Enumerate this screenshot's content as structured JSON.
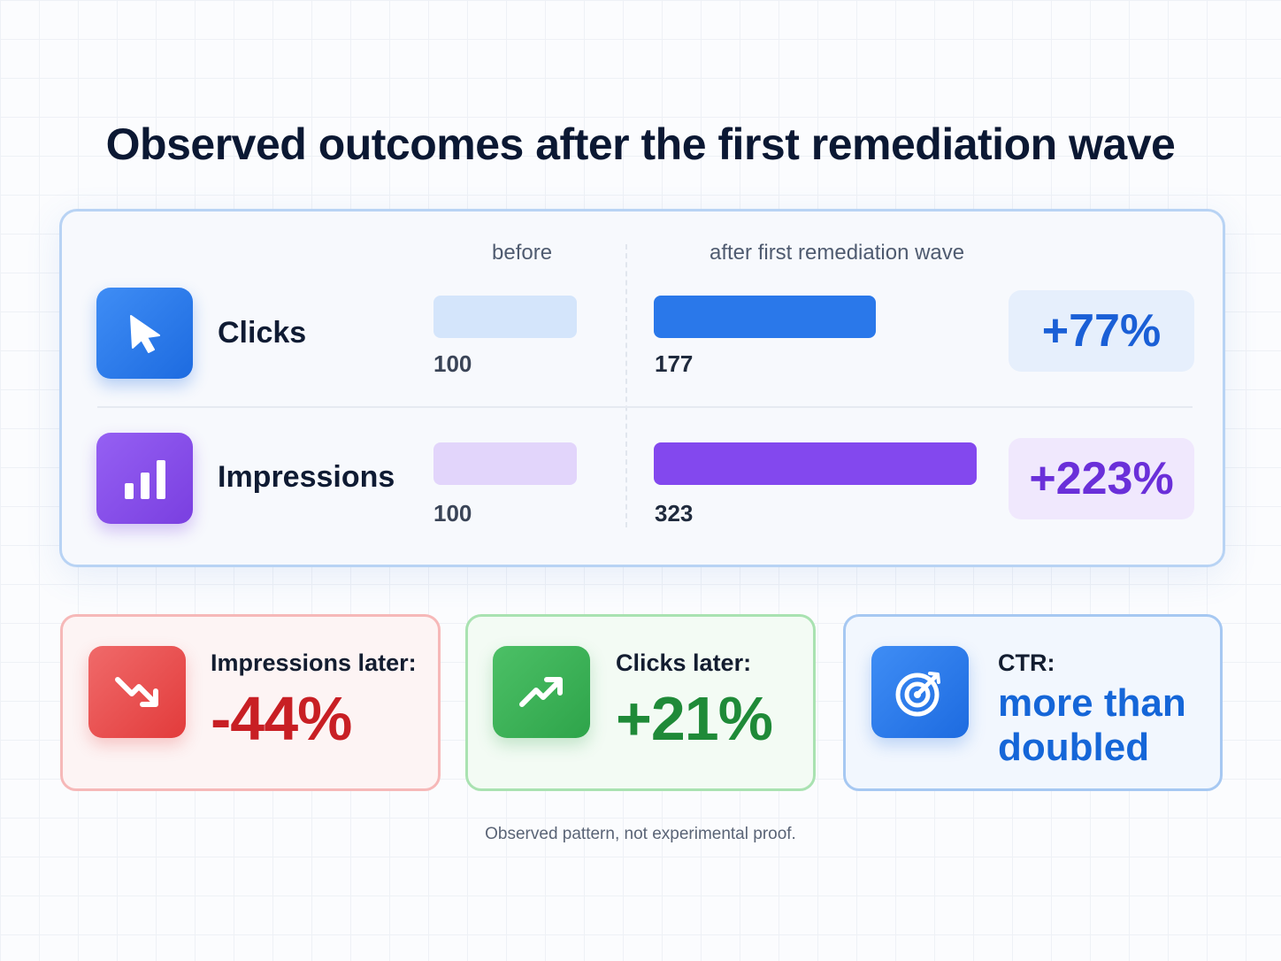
{
  "title": "Observed outcomes after the first remediation wave",
  "columns": {
    "before": "before",
    "after": "after first remediation wave"
  },
  "metrics": [
    {
      "label": "Clicks",
      "icon": "cursor-arrow-icon",
      "before": 100,
      "after": 177,
      "before_text": "100",
      "after_text": "177",
      "change": "+77%",
      "color": "#2a78ea",
      "light_color": "#d4e5fb"
    },
    {
      "label": "Impressions",
      "icon": "bar-chart-icon",
      "before": 100,
      "after": 323,
      "before_text": "100",
      "after_text": "323",
      "change": "+223%",
      "color": "#8348ee",
      "light_color": "#e2d5fb"
    }
  ],
  "cards": [
    {
      "label": "Impressions later:",
      "value": "-44%",
      "icon": "trend-down-icon",
      "color": "#c81f24"
    },
    {
      "label": "Clicks later:",
      "value": "+21%",
      "icon": "trend-up-icon",
      "color": "#1f8a38"
    },
    {
      "label": "CTR:",
      "value": "more than doubled",
      "icon": "target-icon",
      "color": "#1566d8"
    }
  ],
  "footnote": "Observed pattern, not experimental proof."
}
